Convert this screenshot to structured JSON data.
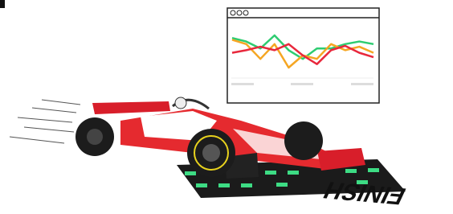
{
  "window_chart": {
    "type": "line",
    "series": [
      {
        "color": "#2ecc71",
        "values": [
          42,
          38,
          30,
          45,
          28,
          18,
          30,
          30,
          35,
          38,
          35
        ]
      },
      {
        "color": "#f5a623",
        "values": [
          40,
          35,
          18,
          35,
          8,
          22,
          18,
          35,
          28,
          32,
          25
        ]
      },
      {
        "color": "#e8283c",
        "values": [
          25,
          28,
          32,
          28,
          35,
          22,
          12,
          28,
          33,
          25,
          20
        ]
      }
    ]
  },
  "finish_text": "FINISH"
}
